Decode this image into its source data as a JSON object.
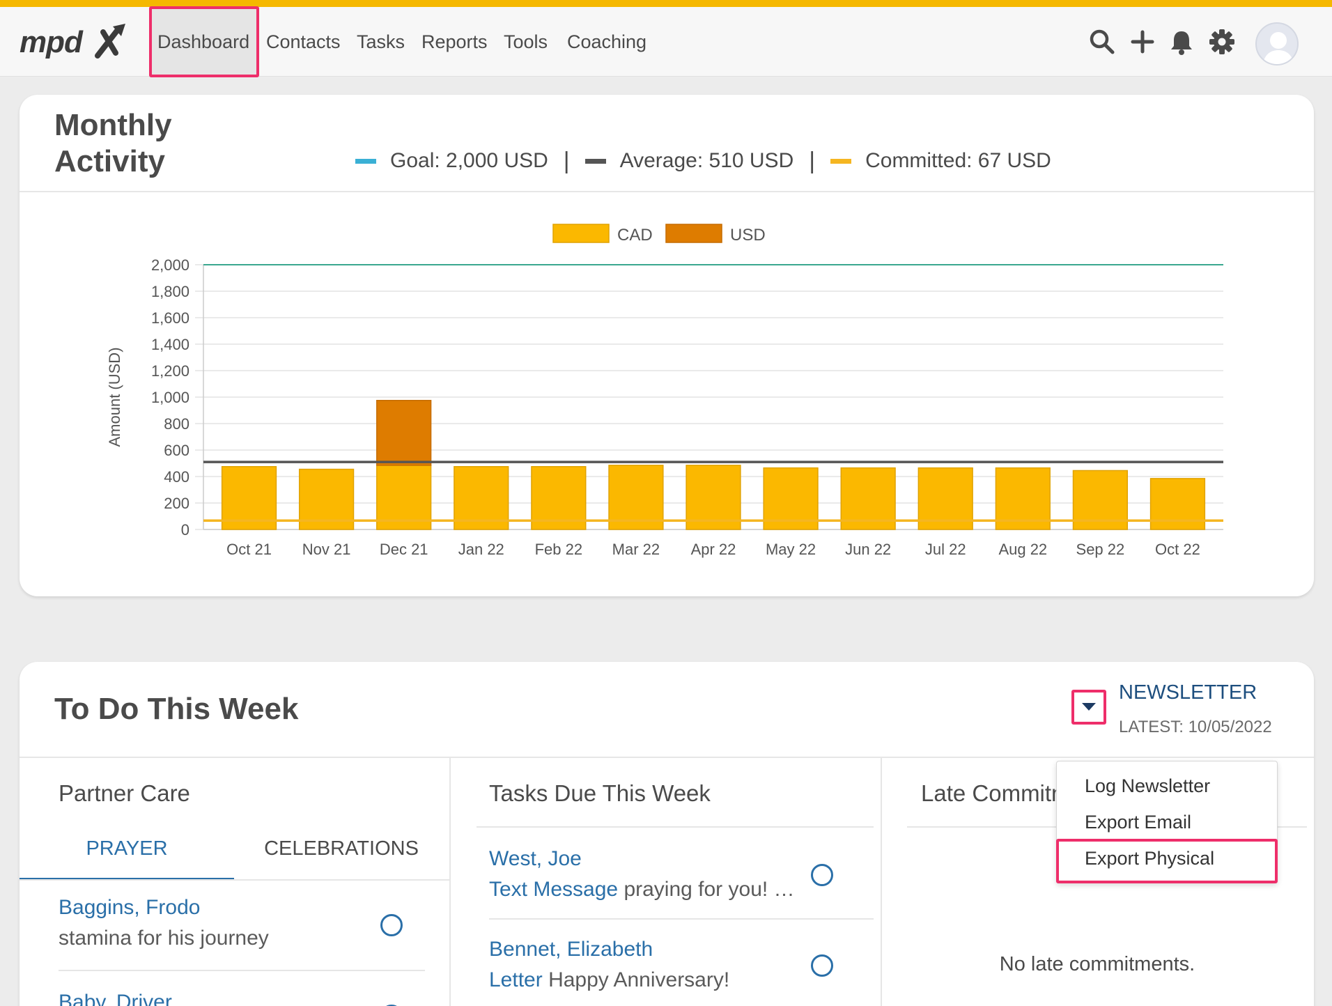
{
  "nav": {
    "items": [
      "Dashboard",
      "Contacts",
      "Tasks",
      "Reports",
      "Tools",
      "Coaching"
    ],
    "active": "Dashboard",
    "icons": [
      "search-icon",
      "plus-icon",
      "bell-icon",
      "gear-icon",
      "avatar"
    ]
  },
  "colors": {
    "accent": "#f5b800",
    "highlight": "#ee2e6a",
    "link": "#2a6fa8",
    "cad": "#fbb800",
    "usd": "#de7c00",
    "goal": "#3ab0d5",
    "average": "#555555",
    "committed": "#f5b621"
  },
  "monthly": {
    "title_line1": "Monthly",
    "title_line2": "Activity",
    "goal_label": "Goal: 2,000 USD",
    "average_label": "Average: 510 USD",
    "committed_label": "Committed: 67 USD",
    "sep": "|"
  },
  "chart_data": {
    "type": "bar",
    "stacked": true,
    "categories": [
      "Oct 21",
      "Nov 21",
      "Dec 21",
      "Jan 22",
      "Feb 22",
      "Mar 22",
      "Apr 22",
      "May 22",
      "Jun 22",
      "Jul 22",
      "Aug 22",
      "Sep 22",
      "Oct 22"
    ],
    "series": [
      {
        "name": "CAD",
        "values": [
          475,
          455,
          485,
          475,
          475,
          485,
          485,
          465,
          465,
          465,
          465,
          445,
          385
        ]
      },
      {
        "name": "USD",
        "values": [
          0,
          0,
          490,
          0,
          0,
          0,
          0,
          0,
          0,
          0,
          0,
          0,
          0
        ]
      }
    ],
    "ylabel": "Amount (USD)",
    "ylim": [
      0,
      2000
    ],
    "yticks": [
      0,
      200,
      400,
      600,
      800,
      1000,
      1200,
      1400,
      1600,
      1800,
      2000
    ],
    "ytick_labels": [
      "0",
      "200",
      "400",
      "600",
      "800",
      "1,000",
      "1,200",
      "1,400",
      "1,600",
      "1,800",
      "2,000"
    ],
    "reference_lines": {
      "goal": 2000,
      "average": 510,
      "committed": 67
    },
    "legend_position": "top-center",
    "grid": true
  },
  "todo": {
    "title": "To Do This Week",
    "newsletter_label": "NEWSLETTER",
    "newsletter_latest": "LATEST: 10/05/2022",
    "partner_care": {
      "title": "Partner Care",
      "tabs": [
        "PRAYER",
        "CELEBRATIONS"
      ],
      "items": [
        {
          "name": "Baggins, Frodo",
          "sub": "stamina for his journey"
        },
        {
          "name": "Baby, Driver",
          "sub": ""
        }
      ]
    },
    "tasks_due": {
      "title": "Tasks Due This Week",
      "items": [
        {
          "name": "West, Joe",
          "type": "Text Message",
          "sub": "praying for you! …"
        },
        {
          "name": "Bennet, Elizabeth",
          "type": "Letter",
          "sub": "Happy Anniversary!"
        }
      ]
    },
    "late_commitments": {
      "title": "Late Commitments",
      "empty": "No late commitments."
    },
    "dropdown": [
      "Log Newsletter",
      "Export Email",
      "Export Physical"
    ]
  }
}
